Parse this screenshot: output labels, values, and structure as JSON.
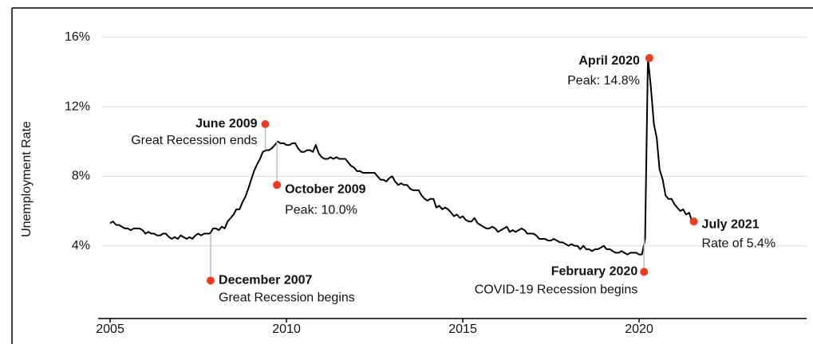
{
  "chart_data": {
    "type": "line",
    "ylabel": "Unemployment Rate",
    "color": "#000000",
    "grid": true,
    "xlim": [
      2004.75,
      2024.75
    ],
    "xticks": [
      2005,
      2010,
      2015,
      2020
    ],
    "ylim": [
      0,
      17.5
    ],
    "yticks": [
      {
        "value": 4,
        "label": "4%"
      },
      {
        "value": 8,
        "label": "8%"
      },
      {
        "value": 12,
        "label": "12%"
      },
      {
        "value": 16,
        "label": "16%"
      }
    ],
    "x": [
      2005,
      2005.08,
      2005.17,
      2005.25,
      2005.33,
      2005.42,
      2005.5,
      2005.58,
      2005.67,
      2005.75,
      2005.83,
      2005.92,
      2006,
      2006.08,
      2006.17,
      2006.25,
      2006.33,
      2006.42,
      2006.5,
      2006.58,
      2006.67,
      2006.75,
      2006.83,
      2006.92,
      2007,
      2007.08,
      2007.17,
      2007.25,
      2007.33,
      2007.42,
      2007.5,
      2007.58,
      2007.67,
      2007.75,
      2007.83,
      2007.92,
      2008,
      2008.08,
      2008.17,
      2008.25,
      2008.33,
      2008.42,
      2008.5,
      2008.58,
      2008.67,
      2008.75,
      2008.83,
      2008.92,
      2009,
      2009.08,
      2009.17,
      2009.25,
      2009.33,
      2009.42,
      2009.5,
      2009.58,
      2009.67,
      2009.75,
      2009.83,
      2009.92,
      2010,
      2010.08,
      2010.17,
      2010.25,
      2010.33,
      2010.42,
      2010.5,
      2010.58,
      2010.67,
      2010.75,
      2010.83,
      2010.92,
      2011,
      2011.08,
      2011.17,
      2011.25,
      2011.33,
      2011.42,
      2011.5,
      2011.58,
      2011.67,
      2011.75,
      2011.83,
      2011.92,
      2012,
      2012.08,
      2012.17,
      2012.25,
      2012.33,
      2012.42,
      2012.5,
      2012.58,
      2012.67,
      2012.75,
      2012.83,
      2012.92,
      2013,
      2013.08,
      2013.17,
      2013.25,
      2013.33,
      2013.42,
      2013.5,
      2013.58,
      2013.67,
      2013.75,
      2013.83,
      2013.92,
      2014,
      2014.08,
      2014.17,
      2014.25,
      2014.33,
      2014.42,
      2014.5,
      2014.58,
      2014.67,
      2014.75,
      2014.83,
      2014.92,
      2015,
      2015.08,
      2015.17,
      2015.25,
      2015.33,
      2015.42,
      2015.5,
      2015.58,
      2015.67,
      2015.75,
      2015.83,
      2015.92,
      2016,
      2016.08,
      2016.17,
      2016.25,
      2016.33,
      2016.42,
      2016.5,
      2016.58,
      2016.67,
      2016.75,
      2016.83,
      2016.92,
      2017,
      2017.08,
      2017.17,
      2017.25,
      2017.33,
      2017.42,
      2017.5,
      2017.58,
      2017.67,
      2017.75,
      2017.83,
      2017.92,
      2018,
      2018.08,
      2018.17,
      2018.25,
      2018.33,
      2018.42,
      2018.5,
      2018.58,
      2018.67,
      2018.75,
      2018.83,
      2018.92,
      2019,
      2019.08,
      2019.17,
      2019.25,
      2019.33,
      2019.42,
      2019.5,
      2019.58,
      2019.67,
      2019.75,
      2019.83,
      2019.92,
      2020,
      2020.08,
      2020.17,
      2020.25,
      2020.33,
      2020.42,
      2020.5,
      2020.58,
      2020.67,
      2020.75,
      2020.83,
      2020.92,
      2021,
      2021.08,
      2021.17,
      2021.25,
      2021.33,
      2021.42,
      2021.5
    ],
    "values": [
      5.3,
      5.4,
      5.2,
      5.2,
      5.1,
      5.0,
      5.0,
      4.9,
      5.0,
      5.0,
      5.0,
      4.9,
      4.7,
      4.8,
      4.7,
      4.7,
      4.6,
      4.6,
      4.7,
      4.7,
      4.5,
      4.4,
      4.5,
      4.4,
      4.6,
      4.5,
      4.4,
      4.5,
      4.4,
      4.6,
      4.7,
      4.6,
      4.7,
      4.7,
      4.7,
      5.0,
      5.0,
      4.9,
      5.1,
      5.0,
      5.4,
      5.6,
      5.8,
      6.1,
      6.1,
      6.5,
      6.8,
      7.3,
      7.8,
      8.3,
      8.7,
      9.0,
      9.4,
      9.5,
      9.5,
      9.6,
      9.8,
      10.0,
      9.9,
      9.9,
      9.8,
      9.8,
      9.9,
      9.9,
      9.6,
      9.4,
      9.4,
      9.5,
      9.5,
      9.4,
      9.8,
      9.3,
      9.1,
      9.0,
      9.0,
      9.1,
      9.0,
      9.1,
      9.0,
      9.0,
      9.0,
      8.8,
      8.6,
      8.5,
      8.3,
      8.3,
      8.2,
      8.2,
      8.2,
      8.2,
      8.2,
      8.0,
      7.8,
      7.8,
      7.7,
      7.9,
      8.0,
      7.7,
      7.5,
      7.6,
      7.5,
      7.5,
      7.3,
      7.2,
      7.2,
      7.2,
      6.9,
      6.7,
      6.6,
      6.7,
      6.7,
      6.2,
      6.3,
      6.1,
      6.2,
      6.1,
      5.9,
      5.7,
      5.8,
      5.6,
      5.7,
      5.5,
      5.4,
      5.4,
      5.6,
      5.3,
      5.2,
      5.1,
      5.0,
      5.0,
      5.1,
      5.0,
      4.8,
      4.9,
      5.0,
      5.1,
      4.8,
      4.9,
      4.8,
      4.9,
      5.0,
      4.9,
      4.7,
      4.7,
      4.7,
      4.6,
      4.4,
      4.4,
      4.4,
      4.3,
      4.3,
      4.4,
      4.3,
      4.2,
      4.2,
      4.1,
      4.0,
      4.1,
      4.0,
      4.0,
      3.8,
      4.0,
      3.8,
      3.8,
      3.7,
      3.8,
      3.8,
      3.9,
      4.0,
      3.8,
      3.8,
      3.7,
      3.6,
      3.6,
      3.7,
      3.6,
      3.5,
      3.6,
      3.6,
      3.6,
      3.5,
      3.5,
      4.4,
      14.8,
      13.2,
      11.0,
      10.2,
      8.4,
      7.8,
      6.9,
      6.7,
      6.7,
      6.4,
      6.2,
      6.0,
      6.1,
      5.8,
      5.9,
      5.4
    ],
    "annotations": [
      {
        "x": 2007.85,
        "y": 2.0,
        "title": "December 2007",
        "text": "Great Recession begins"
      },
      {
        "x": 2009.4,
        "y": 11.0,
        "title": "June 2009",
        "text": "Great Recession ends"
      },
      {
        "x": 2009.73,
        "y": 7.5,
        "title": "October 2009",
        "text": "Peak: 10.0%"
      },
      {
        "x": 2020.29,
        "y": 14.8,
        "title": "April 2020",
        "text": "Peak: 14.8%"
      },
      {
        "x": 2020.14,
        "y": 2.5,
        "title": "February 2020",
        "text": "COVID-19 Recession begins"
      },
      {
        "x": 2021.55,
        "y": 5.4,
        "title": "July 2021",
        "text": "Rate of 5.4%"
      }
    ],
    "annotation_color": "#f23b1c"
  }
}
